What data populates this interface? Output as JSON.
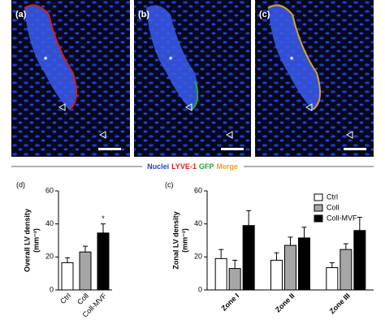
{
  "images": {
    "labels": [
      "(a)",
      "(b)",
      "(c)"
    ],
    "asterisk": "*",
    "stain_legend": [
      {
        "text": "Nuclei",
        "color": "#1f3fd6"
      },
      {
        "text": "LYVE-1",
        "color": "#e0201c"
      },
      {
        "text": "GFP",
        "color": "#21a336"
      },
      {
        "text": "Merge",
        "color": "#f0a020"
      }
    ]
  },
  "chart_data": [
    {
      "type": "bar",
      "panel_label": "(d)",
      "y_label": [
        "Overall LV density",
        "(mm⁻²)"
      ],
      "categories": [
        "Ctrl",
        "Coll",
        "Coll-MVF"
      ],
      "values": [
        16.5,
        23,
        34.5
      ],
      "errors": [
        3,
        3.5,
        5.5
      ],
      "colors": [
        "#ffffff",
        "#a6a6a6",
        "#000000"
      ],
      "annotation": "*",
      "ylim": [
        0,
        60
      ],
      "yticks": [
        0,
        20,
        40,
        60
      ]
    },
    {
      "type": "grouped-bar",
      "panel_label": "(c)",
      "y_label": [
        "Zonal LV density",
        "(mm⁻²)"
      ],
      "categories": [
        "Zone I",
        "Zone II",
        "Zone III"
      ],
      "series": [
        {
          "name": "Ctrl",
          "color": "#ffffff",
          "values": [
            19,
            18,
            13.5
          ],
          "errors": [
            5.5,
            4.5,
            3
          ]
        },
        {
          "name": "Coll",
          "color": "#a6a6a6",
          "values": [
            13,
            27,
            24.5
          ],
          "errors": [
            5,
            5,
            3.5
          ]
        },
        {
          "name": "Coll-MVF",
          "color": "#000000",
          "values": [
            39,
            31.5,
            36
          ],
          "errors": [
            9,
            6.5,
            8
          ]
        }
      ],
      "ylim": [
        0,
        60
      ],
      "yticks": [
        0,
        20,
        40,
        60
      ]
    }
  ]
}
